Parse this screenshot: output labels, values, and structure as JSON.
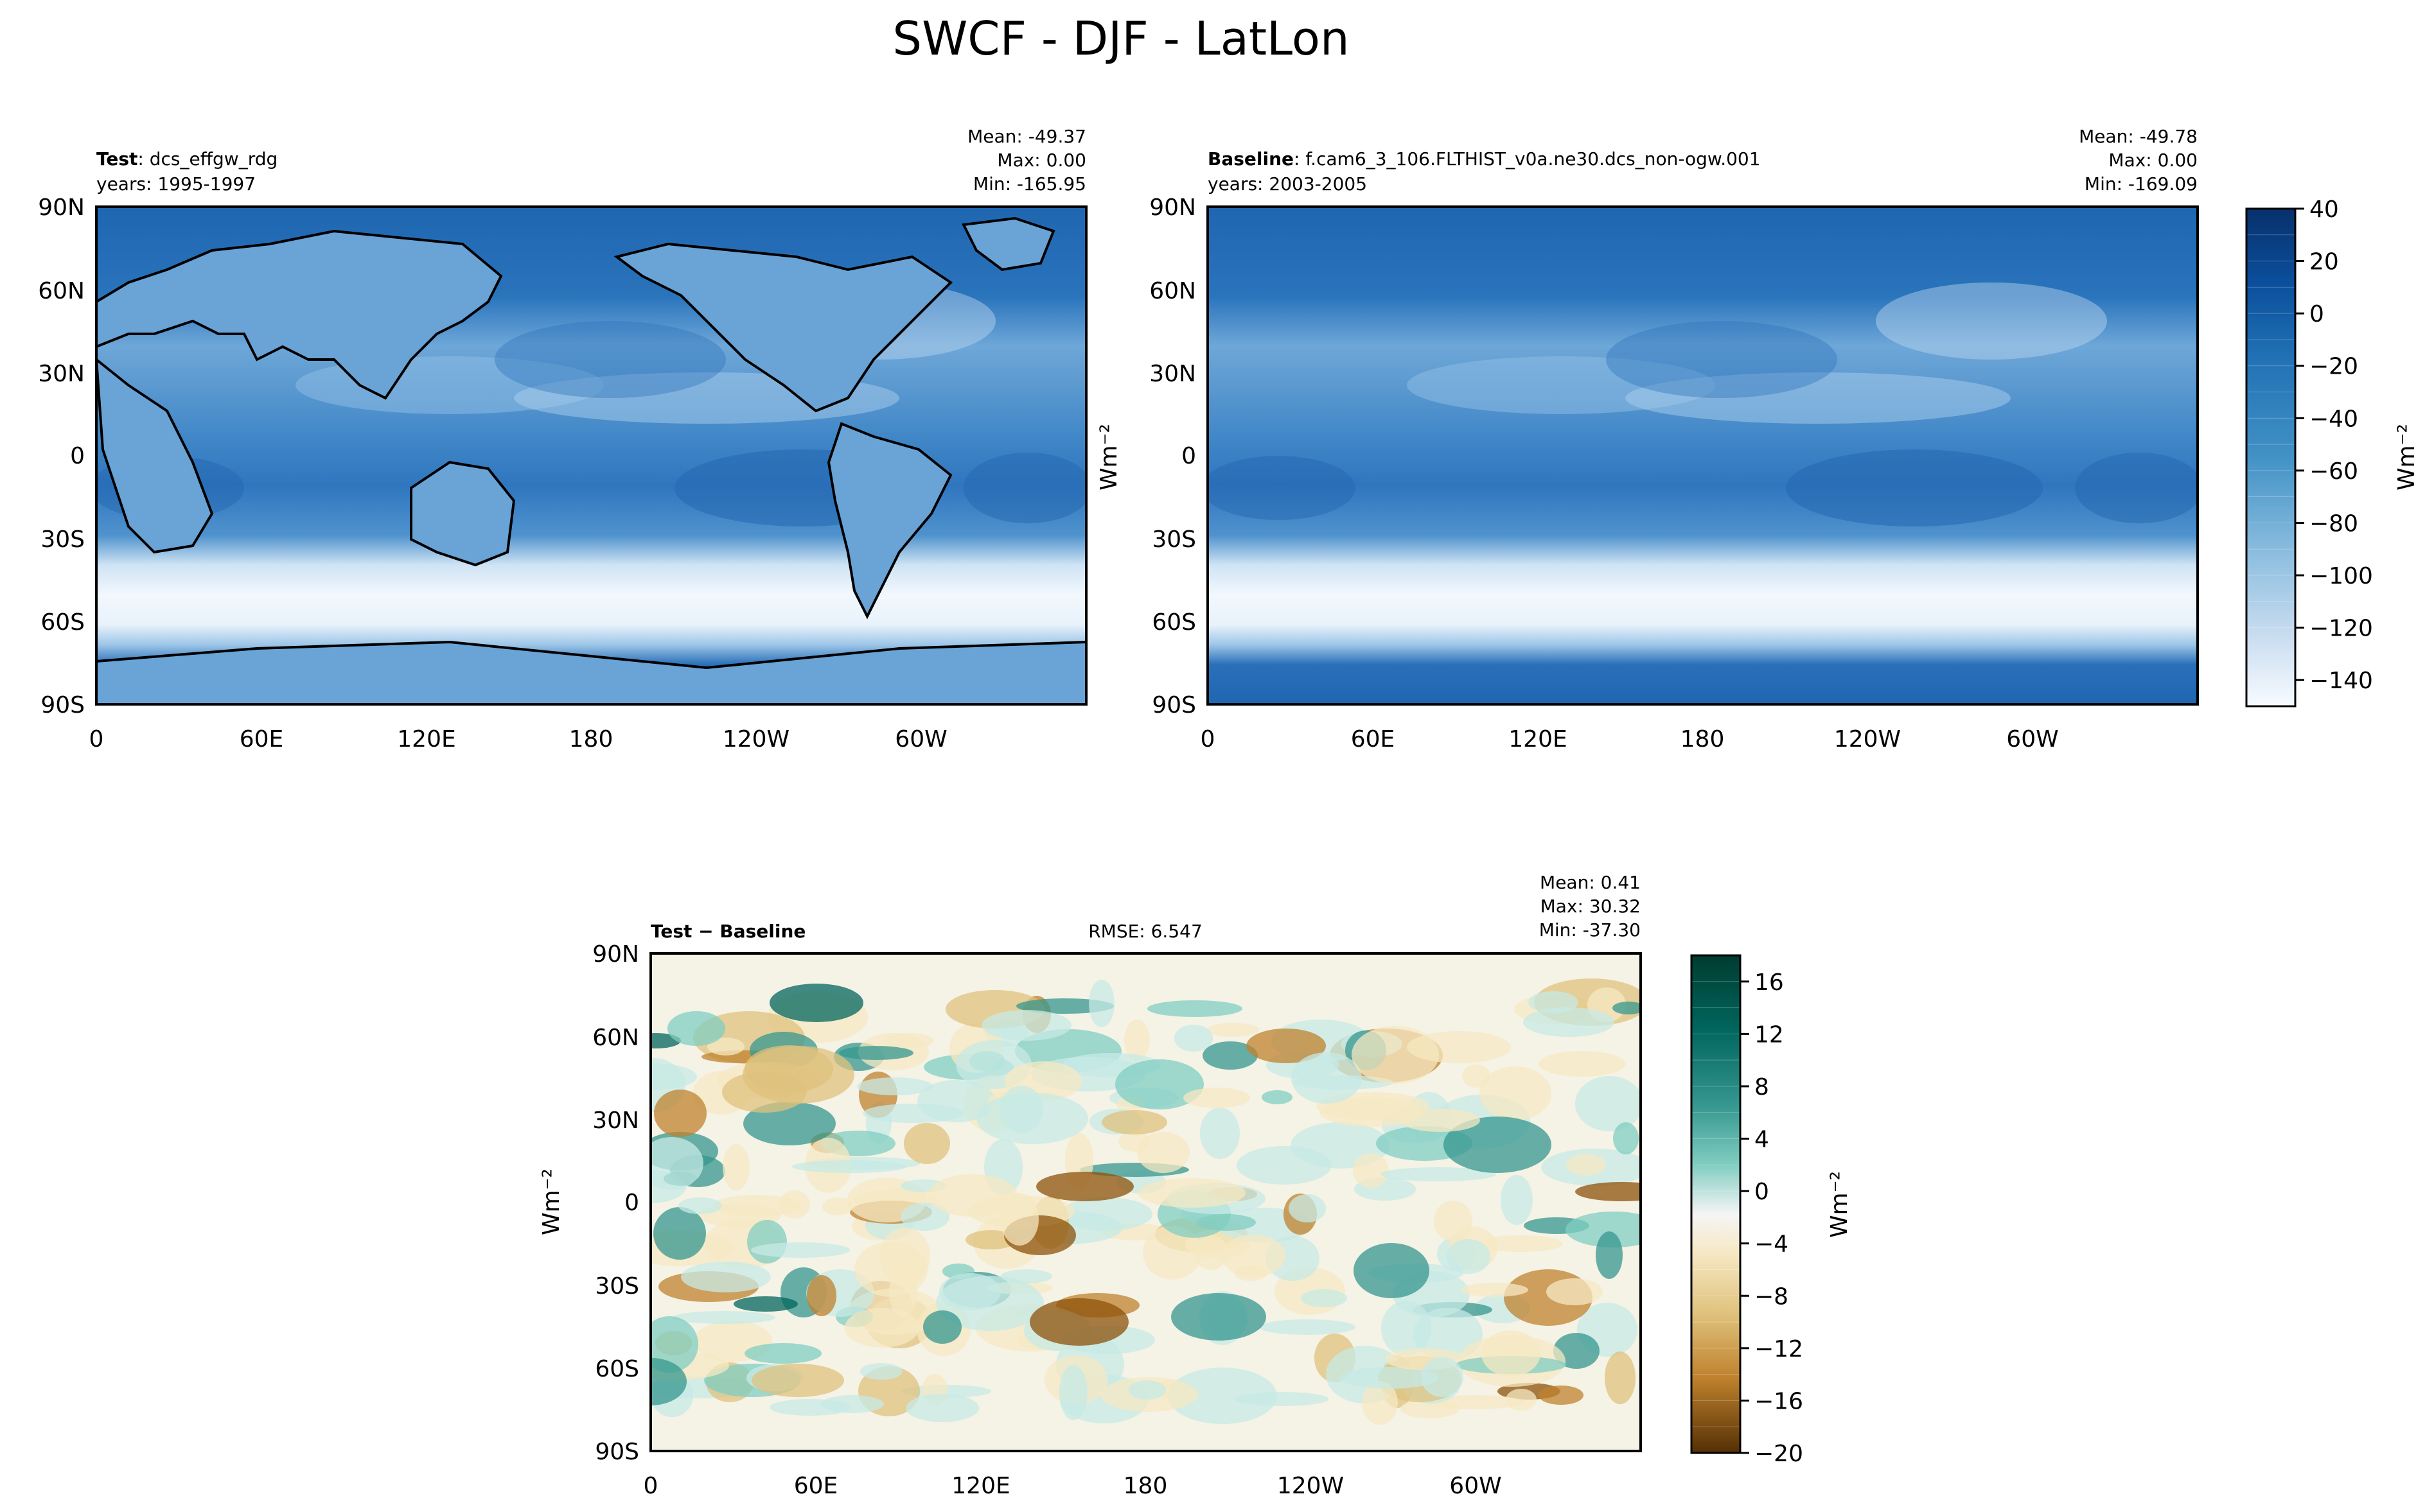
{
  "title": "SWCF - DJF - LatLon",
  "colors": {
    "ocean_high": "#1f66b1",
    "ocean_mid": "#4a8fcb",
    "cloud_band": "#e8f2fb",
    "diff_neutral": "#f5f2e6",
    "diff_pos": "#0a7a6a",
    "diff_neg": "#b07020",
    "coast": "#000000"
  },
  "panels": [
    {
      "id": "test",
      "label_bold": "Test",
      "label_rest": ": dcs_effgw_rdg",
      "years": "years: 1995-1997",
      "stats": [
        "Mean: -49.37",
        "Max:  0.00",
        "Min: -165.95"
      ]
    },
    {
      "id": "baseline",
      "label_bold": "Baseline",
      "label_rest": ": f.cam6_3_106.FLTHIST_v0a.ne30.dcs_non-ogw.001",
      "years": "years: 2003-2005",
      "stats": [
        "Mean: -49.78",
        "Max:  0.00",
        "Min: -169.09"
      ]
    },
    {
      "id": "diff",
      "label_bold": "Test − Baseline",
      "rmse": "RMSE: 6.547",
      "stats": [
        "Mean:  0.41",
        "Max: 30.32",
        "Min: -37.30"
      ]
    }
  ],
  "chart_data": [
    {
      "type": "heatmap",
      "title": "Test: dcs_effgw_rdg",
      "x_ticks": [
        "0",
        "60E",
        "120E",
        "180",
        "120W",
        "60W"
      ],
      "y_ticks": [
        "90N",
        "60N",
        "30N",
        "0",
        "30S",
        "60S",
        "90S"
      ],
      "xlim": [
        0,
        360
      ],
      "ylim": [
        -90,
        90
      ]
    },
    {
      "type": "heatmap",
      "title": "Baseline: f.cam6_3_106.FLTHIST_v0a.ne30.dcs_non-ogw.001",
      "x_ticks": [
        "0",
        "60E",
        "120E",
        "180",
        "120W",
        "60W"
      ],
      "y_ticks": [
        "90N",
        "60N",
        "30N",
        "0",
        "30S",
        "60S",
        "90S"
      ],
      "xlim": [
        0,
        360
      ],
      "ylim": [
        -90,
        90
      ],
      "colorbar": {
        "label": "Wm⁻²",
        "range": [
          -150,
          40
        ],
        "ticks": [
          "40",
          "20",
          "0",
          "−20",
          "−40",
          "−60",
          "−80",
          "−100",
          "−120",
          "−140"
        ],
        "levels": [
          40,
          30,
          20,
          10,
          0,
          -10,
          -20,
          -30,
          -40,
          -50,
          -60,
          -70,
          -80,
          -90,
          -100,
          -110,
          -120,
          -130,
          -140,
          -150
        ]
      }
    },
    {
      "type": "heatmap",
      "title": "Test − Baseline",
      "ylabel": "Wm⁻²",
      "x_ticks": [
        "0",
        "60E",
        "120E",
        "180",
        "120W",
        "60W"
      ],
      "y_ticks": [
        "90N",
        "60N",
        "30N",
        "0",
        "30S",
        "60S",
        "90S"
      ],
      "xlim": [
        0,
        360
      ],
      "ylim": [
        -90,
        90
      ],
      "colorbar": {
        "label": "Wm⁻²",
        "range": [
          -20,
          18
        ],
        "ticks": [
          "16",
          "12",
          "8",
          "4",
          "0",
          "−4",
          "−8",
          "−12",
          "−16",
          "−20"
        ],
        "levels": [
          18,
          16,
          14,
          12,
          10,
          8,
          6,
          4,
          2,
          0,
          -2,
          -4,
          -6,
          -8,
          -10,
          -12,
          -14,
          -16,
          -18,
          -20
        ]
      }
    }
  ],
  "y_label_left": "Wm⁻²"
}
